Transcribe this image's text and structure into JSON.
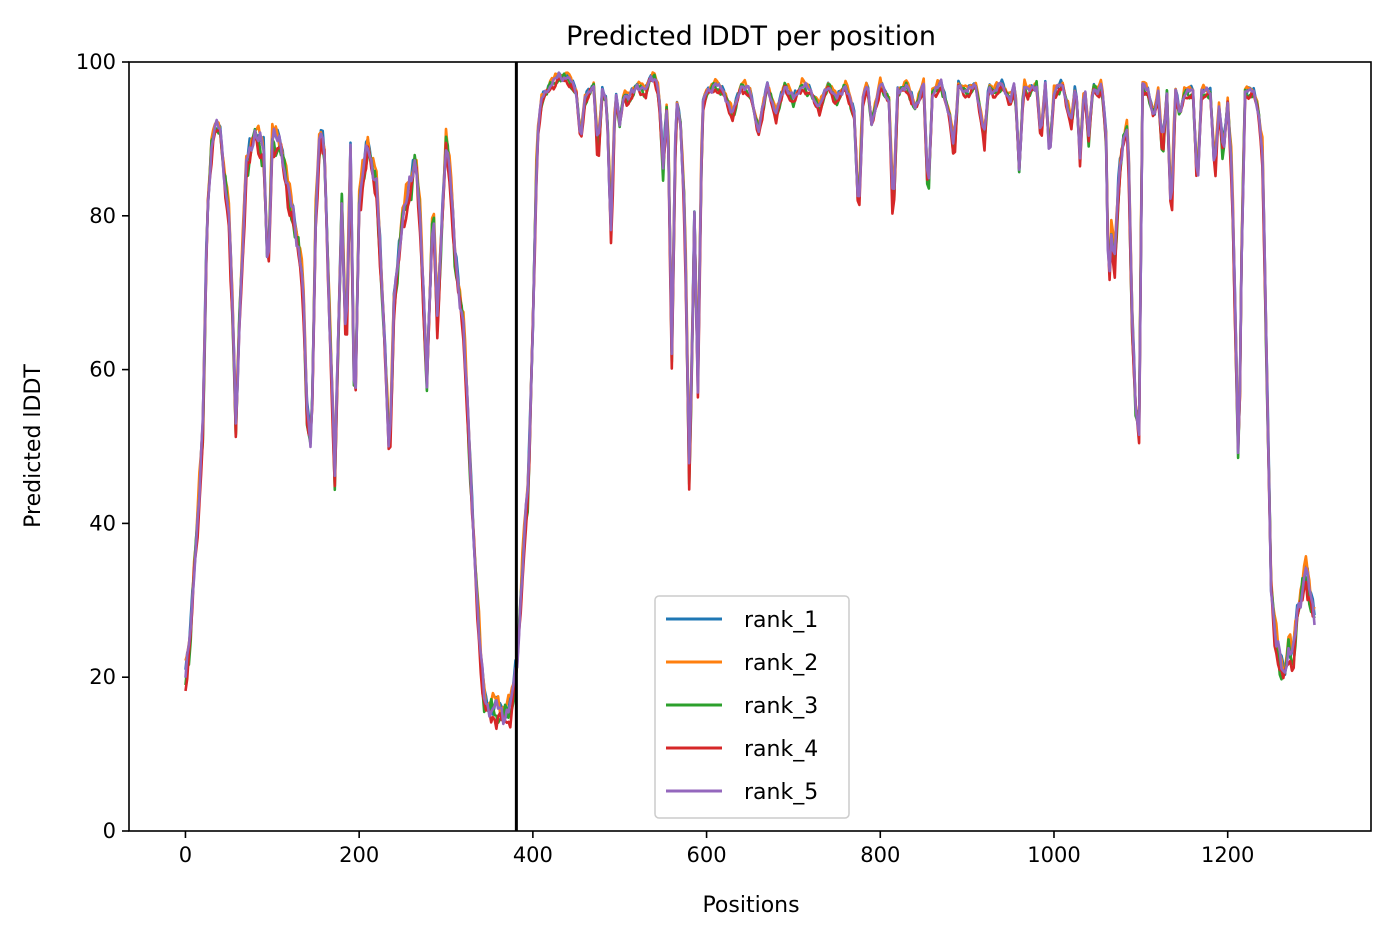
{
  "chart_data": {
    "type": "line",
    "title": "Predicted lDDT per position",
    "xlabel": "Positions",
    "ylabel": "Predicted lDDT",
    "xlim": [
      -65,
      1365
    ],
    "ylim": [
      0,
      100
    ],
    "x_ticks": [
      0,
      200,
      400,
      600,
      800,
      1000,
      1200
    ],
    "y_ticks": [
      0,
      20,
      40,
      60,
      80,
      100
    ],
    "grid": false,
    "legend_placement": "bottom-center",
    "vline_x": 381,
    "vline_color": "#000000",
    "base_profile": [
      [
        0,
        20
      ],
      [
        5,
        24
      ],
      [
        10,
        34
      ],
      [
        15,
        42
      ],
      [
        20,
        52
      ],
      [
        25,
        80
      ],
      [
        30,
        89
      ],
      [
        35,
        92
      ],
      [
        40,
        91
      ],
      [
        45,
        85
      ],
      [
        50,
        80
      ],
      [
        55,
        65
      ],
      [
        58,
        52
      ],
      [
        62,
        66
      ],
      [
        70,
        86
      ],
      [
        80,
        91
      ],
      [
        90,
        88
      ],
      [
        95,
        72
      ],
      [
        100,
        90
      ],
      [
        110,
        89
      ],
      [
        120,
        82
      ],
      [
        130,
        76
      ],
      [
        135,
        72
      ],
      [
        140,
        54
      ],
      [
        145,
        50
      ],
      [
        150,
        80
      ],
      [
        155,
        91
      ],
      [
        160,
        88
      ],
      [
        165,
        70
      ],
      [
        172,
        46
      ],
      [
        180,
        82
      ],
      [
        185,
        62
      ],
      [
        190,
        88
      ],
      [
        195,
        52
      ],
      [
        200,
        82
      ],
      [
        210,
        89
      ],
      [
        220,
        84
      ],
      [
        230,
        62
      ],
      [
        235,
        48
      ],
      [
        240,
        68
      ],
      [
        250,
        80
      ],
      [
        260,
        84
      ],
      [
        265,
        88
      ],
      [
        270,
        80
      ],
      [
        278,
        58
      ],
      [
        285,
        82
      ],
      [
        290,
        66
      ],
      [
        300,
        90
      ],
      [
        305,
        85
      ],
      [
        310,
        75
      ],
      [
        315,
        70
      ],
      [
        320,
        66
      ],
      [
        330,
        42
      ],
      [
        340,
        22
      ],
      [
        345,
        16
      ],
      [
        355,
        16
      ],
      [
        365,
        15
      ],
      [
        375,
        16
      ],
      [
        382,
        22
      ],
      [
        390,
        38
      ],
      [
        395,
        45
      ],
      [
        400,
        66
      ],
      [
        405,
        90
      ],
      [
        410,
        95
      ],
      [
        420,
        97
      ],
      [
        430,
        98
      ],
      [
        440,
        98
      ],
      [
        450,
        96
      ],
      [
        455,
        90
      ],
      [
        460,
        95
      ],
      [
        470,
        97
      ],
      [
        475,
        88
      ],
      [
        480,
        96
      ],
      [
        485,
        95
      ],
      [
        490,
        78
      ],
      [
        495,
        96
      ],
      [
        500,
        92
      ],
      [
        505,
        96
      ],
      [
        510,
        95
      ],
      [
        520,
        97
      ],
      [
        530,
        96
      ],
      [
        535,
        98
      ],
      [
        540,
        98
      ],
      [
        545,
        96
      ],
      [
        550,
        86
      ],
      [
        555,
        96
      ],
      [
        560,
        62
      ],
      [
        565,
        95
      ],
      [
        570,
        92
      ],
      [
        575,
        80
      ],
      [
        580,
        46
      ],
      [
        583,
        60
      ],
      [
        586,
        80
      ],
      [
        590,
        58
      ],
      [
        595,
        94
      ],
      [
        600,
        96
      ],
      [
        610,
        97
      ],
      [
        620,
        96
      ],
      [
        630,
        93
      ],
      [
        640,
        97
      ],
      [
        650,
        96
      ],
      [
        660,
        91
      ],
      [
        670,
        97
      ],
      [
        680,
        93
      ],
      [
        690,
        97
      ],
      [
        700,
        95
      ],
      [
        710,
        97
      ],
      [
        720,
        96
      ],
      [
        730,
        94
      ],
      [
        740,
        97
      ],
      [
        750,
        95
      ],
      [
        760,
        97
      ],
      [
        770,
        93
      ],
      [
        775,
        80
      ],
      [
        780,
        95
      ],
      [
        785,
        97
      ],
      [
        790,
        92
      ],
      [
        800,
        97
      ],
      [
        810,
        95
      ],
      [
        815,
        80
      ],
      [
        820,
        96
      ],
      [
        830,
        97
      ],
      [
        840,
        94
      ],
      [
        850,
        97
      ],
      [
        855,
        82
      ],
      [
        860,
        96
      ],
      [
        870,
        97
      ],
      [
        880,
        93
      ],
      [
        885,
        88
      ],
      [
        890,
        97
      ],
      [
        900,
        96
      ],
      [
        910,
        97
      ],
      [
        920,
        90
      ],
      [
        925,
        97
      ],
      [
        930,
        96
      ],
      [
        940,
        97
      ],
      [
        950,
        95
      ],
      [
        955,
        97
      ],
      [
        960,
        86
      ],
      [
        965,
        97
      ],
      [
        970,
        96
      ],
      [
        980,
        97
      ],
      [
        985,
        90
      ],
      [
        990,
        97
      ],
      [
        995,
        88
      ],
      [
        1000,
        96
      ],
      [
        1010,
        97
      ],
      [
        1020,
        92
      ],
      [
        1025,
        97
      ],
      [
        1030,
        88
      ],
      [
        1035,
        97
      ],
      [
        1040,
        90
      ],
      [
        1045,
        97
      ],
      [
        1050,
        96
      ],
      [
        1055,
        97
      ],
      [
        1060,
        90
      ],
      [
        1063,
        70
      ],
      [
        1066,
        78
      ],
      [
        1070,
        74
      ],
      [
        1075,
        85
      ],
      [
        1080,
        90
      ],
      [
        1085,
        92
      ],
      [
        1090,
        66
      ],
      [
        1094,
        55
      ],
      [
        1098,
        52
      ],
      [
        1102,
        97
      ],
      [
        1108,
        96
      ],
      [
        1115,
        93
      ],
      [
        1120,
        96
      ],
      [
        1125,
        88
      ],
      [
        1130,
        96
      ],
      [
        1135,
        80
      ],
      [
        1140,
        96
      ],
      [
        1145,
        93
      ],
      [
        1150,
        96
      ],
      [
        1160,
        96
      ],
      [
        1165,
        84
      ],
      [
        1170,
        96
      ],
      [
        1180,
        96
      ],
      [
        1185,
        86
      ],
      [
        1190,
        94
      ],
      [
        1195,
        88
      ],
      [
        1200,
        95
      ],
      [
        1205,
        85
      ],
      [
        1210,
        60
      ],
      [
        1213,
        44
      ],
      [
        1215,
        70
      ],
      [
        1220,
        96
      ],
      [
        1230,
        96
      ],
      [
        1235,
        94
      ],
      [
        1240,
        88
      ],
      [
        1245,
        60
      ],
      [
        1250,
        32
      ],
      [
        1255,
        25
      ],
      [
        1260,
        22
      ],
      [
        1265,
        20
      ],
      [
        1270,
        24
      ],
      [
        1275,
        22
      ],
      [
        1280,
        28
      ],
      [
        1285,
        31
      ],
      [
        1290,
        34
      ],
      [
        1295,
        30
      ],
      [
        1300,
        28
      ]
    ],
    "series": [
      {
        "name": "rank_1",
        "color": "#1f77b4"
      },
      {
        "name": "rank_2",
        "color": "#ff7f0e"
      },
      {
        "name": "rank_3",
        "color": "#2ca02c"
      },
      {
        "name": "rank_4",
        "color": "#d62728"
      },
      {
        "name": "rank_5",
        "color": "#9467bd"
      }
    ]
  }
}
